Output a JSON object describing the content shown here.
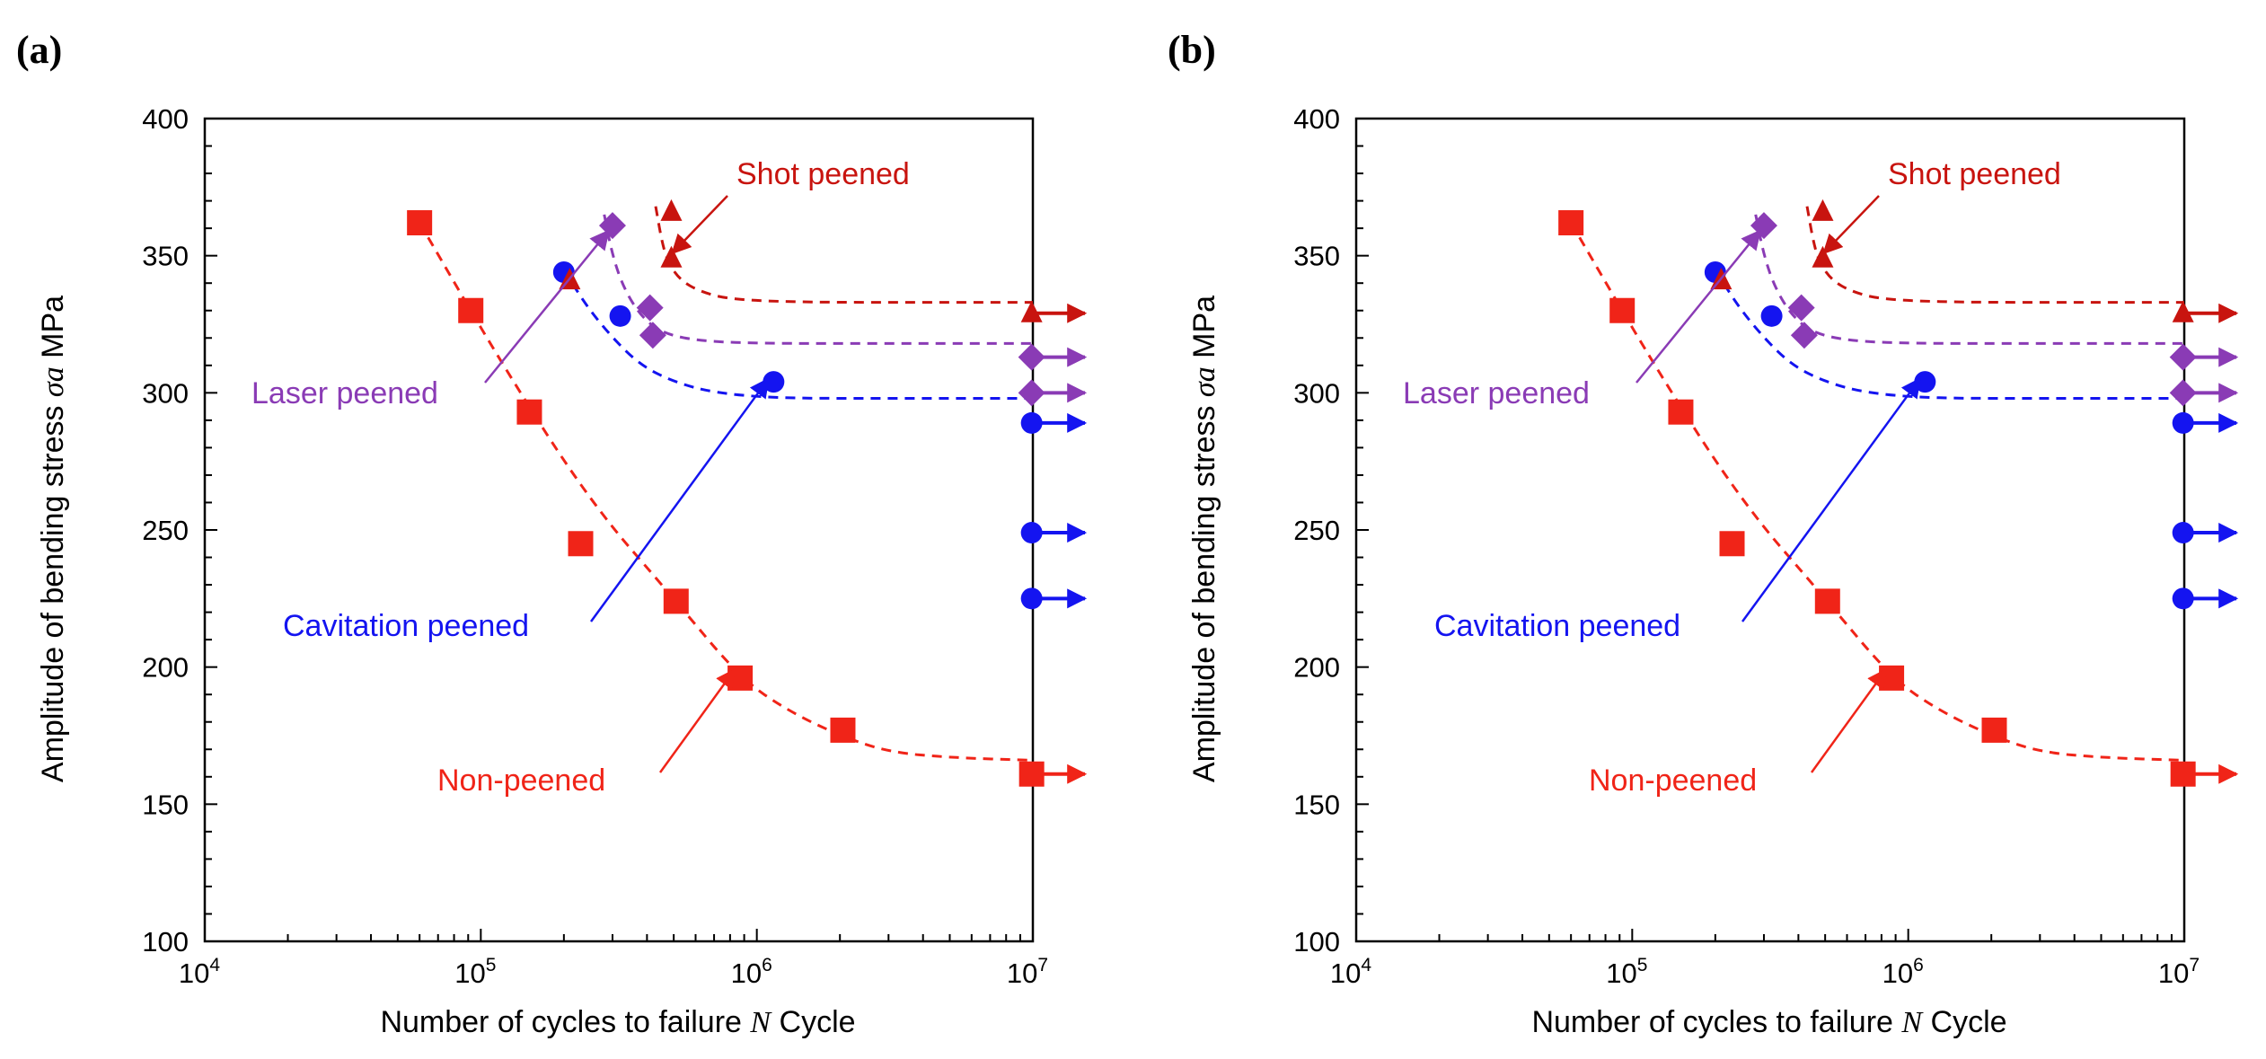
{
  "colors": {
    "non": "#f02418",
    "cav": "#1414f0",
    "laser": "#8a3bb5",
    "shot": "#c8140f"
  },
  "chart_data": [
    {
      "panel_label": "(a)",
      "type": "scatter",
      "x_scale": "log",
      "xlim": [
        10000,
        10000000
      ],
      "ylim": [
        100,
        400
      ],
      "yticks": [
        100,
        150,
        200,
        250,
        300,
        350,
        400
      ],
      "xticks": [
        {
          "base": "10",
          "exp": "4"
        },
        {
          "base": "10",
          "exp": "5"
        },
        {
          "base": "10",
          "exp": "6"
        },
        {
          "base": "10",
          "exp": "7"
        }
      ],
      "xlabel": {
        "text": "Number of cycles to failure",
        "var": "N",
        "unit": "Cycle"
      },
      "ylabel": {
        "text": "Amplitude of bending stress",
        "var": "σa",
        "unit": "MPa"
      },
      "series": [
        {
          "name": "Non-peened",
          "color_key": "non",
          "marker": "square",
          "points": [
            [
              60000,
              362
            ],
            [
              92000,
              330
            ],
            [
              150000,
              293
            ],
            [
              230000,
              245
            ],
            [
              510000,
              224
            ],
            [
              870000,
              196
            ],
            [
              2050000,
              177
            ],
            [
              9900000,
              161
            ]
          ],
          "runouts": [
            161
          ],
          "curve": [
            [
              60000,
              362
            ],
            [
              120000,
              310
            ],
            [
              250000,
              260
            ],
            [
              500000,
              225
            ],
            [
              870000,
              196
            ],
            [
              1300000,
              184
            ],
            [
              2000000,
              175
            ],
            [
              3000000,
              169
            ],
            [
              5000000,
              167
            ],
            [
              10000000,
              166
            ]
          ]
        },
        {
          "name": "Cavitation peened",
          "color_key": "cav",
          "marker": "circle",
          "points": [
            [
              200000,
              344
            ],
            [
              320000,
              328
            ],
            [
              1150000,
              304
            ],
            [
              9900000,
              289
            ],
            [
              9900000,
              249
            ],
            [
              9900000,
              225
            ]
          ],
          "runouts": [
            289,
            249,
            225
          ],
          "curve": [
            [
              200000,
              345
            ],
            [
              240000,
              332
            ],
            [
              300000,
              320
            ],
            [
              380000,
              310
            ],
            [
              500000,
              304
            ],
            [
              700000,
              300
            ],
            [
              1200000,
              298
            ],
            [
              3000000,
              298
            ],
            [
              10000000,
              298
            ]
          ]
        },
        {
          "name": "Laser peened",
          "color_key": "laser",
          "marker": "diamond",
          "points": [
            [
              300000,
              361
            ],
            [
              410000,
              331
            ],
            [
              420000,
              321
            ],
            [
              9900000,
              313
            ],
            [
              9900000,
              300
            ]
          ],
          "runouts": [
            313,
            300
          ],
          "curve": [
            [
              280000,
              365
            ],
            [
              300000,
              350
            ],
            [
              330000,
              338
            ],
            [
              380000,
              328
            ],
            [
              450000,
              322
            ],
            [
              600000,
              319
            ],
            [
              1000000,
              318
            ],
            [
              3000000,
              318
            ],
            [
              10000000,
              318
            ]
          ]
        },
        {
          "name": "Shot peened",
          "color_key": "shot",
          "marker": "triangle",
          "points": [
            [
              210000,
              341
            ],
            [
              490000,
              366
            ],
            [
              490000,
              349
            ],
            [
              9900000,
              329
            ]
          ],
          "runouts": [
            329
          ],
          "curve": [
            [
              430000,
              368
            ],
            [
              455000,
              354
            ],
            [
              480000,
              347
            ],
            [
              530000,
              341
            ],
            [
              620000,
              337
            ],
            [
              800000,
              334
            ],
            [
              1500000,
              333
            ],
            [
              4000000,
              333
            ],
            [
              10000000,
              333
            ]
          ]
        }
      ],
      "annotations": [
        {
          "text": "Shot peened",
          "color_key": "shot"
        },
        {
          "text": "Laser peened",
          "color_key": "laser"
        },
        {
          "text": "Cavitation peened",
          "color_key": "cav"
        },
        {
          "text": "Non-peened",
          "color_key": "non"
        }
      ]
    },
    {
      "panel_label": "(b)",
      "type": "scatter",
      "x_scale": "log",
      "xlim": [
        10000,
        10000000
      ],
      "ylim": [
        100,
        400
      ],
      "yticks": [
        100,
        150,
        200,
        250,
        300,
        350,
        400
      ],
      "xticks": [
        {
          "base": "10",
          "exp": "4"
        },
        {
          "base": "10",
          "exp": "5"
        },
        {
          "base": "10",
          "exp": "6"
        },
        {
          "base": "10",
          "exp": "7"
        }
      ],
      "xlabel": {
        "text": "Number of cycles to failure",
        "var": "N",
        "unit": "Cycle"
      },
      "ylabel": {
        "text": "Amplitude of bending stress",
        "var": "σa",
        "unit": "MPa"
      },
      "series": [
        {
          "name": "Non-peened",
          "color_key": "non",
          "marker": "square",
          "points": [
            [
              60000,
              362
            ],
            [
              92000,
              330
            ],
            [
              150000,
              293
            ],
            [
              230000,
              245
            ],
            [
              510000,
              224
            ],
            [
              870000,
              196
            ],
            [
              2050000,
              177
            ],
            [
              9900000,
              161
            ]
          ],
          "runouts": [
            161
          ],
          "curve": [
            [
              60000,
              362
            ],
            [
              120000,
              310
            ],
            [
              250000,
              260
            ],
            [
              500000,
              225
            ],
            [
              870000,
              196
            ],
            [
              1300000,
              184
            ],
            [
              2000000,
              175
            ],
            [
              3000000,
              169
            ],
            [
              5000000,
              167
            ],
            [
              10000000,
              166
            ]
          ]
        },
        {
          "name": "Cavitation peened",
          "color_key": "cav",
          "marker": "circle",
          "points": [
            [
              200000,
              344
            ],
            [
              320000,
              328
            ],
            [
              1150000,
              304
            ],
            [
              9900000,
              289
            ],
            [
              9900000,
              249
            ],
            [
              9900000,
              225
            ]
          ],
          "runouts": [
            289,
            249,
            225
          ],
          "curve": [
            [
              200000,
              345
            ],
            [
              240000,
              332
            ],
            [
              300000,
              320
            ],
            [
              380000,
              310
            ],
            [
              500000,
              304
            ],
            [
              700000,
              300
            ],
            [
              1200000,
              298
            ],
            [
              3000000,
              298
            ],
            [
              10000000,
              298
            ]
          ]
        },
        {
          "name": "Laser peened",
          "color_key": "laser",
          "marker": "diamond",
          "points": [
            [
              300000,
              361
            ],
            [
              410000,
              331
            ],
            [
              420000,
              321
            ],
            [
              9900000,
              313
            ],
            [
              9900000,
              300
            ]
          ],
          "runouts": [
            313,
            300
          ],
          "curve": [
            [
              280000,
              365
            ],
            [
              300000,
              350
            ],
            [
              330000,
              338
            ],
            [
              380000,
              328
            ],
            [
              450000,
              322
            ],
            [
              600000,
              319
            ],
            [
              1000000,
              318
            ],
            [
              3000000,
              318
            ],
            [
              10000000,
              318
            ]
          ]
        },
        {
          "name": "Shot peened",
          "color_key": "shot",
          "marker": "triangle",
          "points": [
            [
              210000,
              341
            ],
            [
              490000,
              366
            ],
            [
              490000,
              349
            ],
            [
              9900000,
              329
            ]
          ],
          "runouts": [
            329
          ],
          "curve": [
            [
              430000,
              368
            ],
            [
              455000,
              354
            ],
            [
              480000,
              347
            ],
            [
              530000,
              341
            ],
            [
              620000,
              337
            ],
            [
              800000,
              334
            ],
            [
              1500000,
              333
            ],
            [
              4000000,
              333
            ],
            [
              10000000,
              333
            ]
          ]
        }
      ],
      "annotations": [
        {
          "text": "Shot peened",
          "color_key": "shot"
        },
        {
          "text": "Laser peened",
          "color_key": "laser"
        },
        {
          "text": "Cavitation peened",
          "color_key": "cav"
        },
        {
          "text": "Non-peened",
          "color_key": "non"
        }
      ]
    }
  ]
}
